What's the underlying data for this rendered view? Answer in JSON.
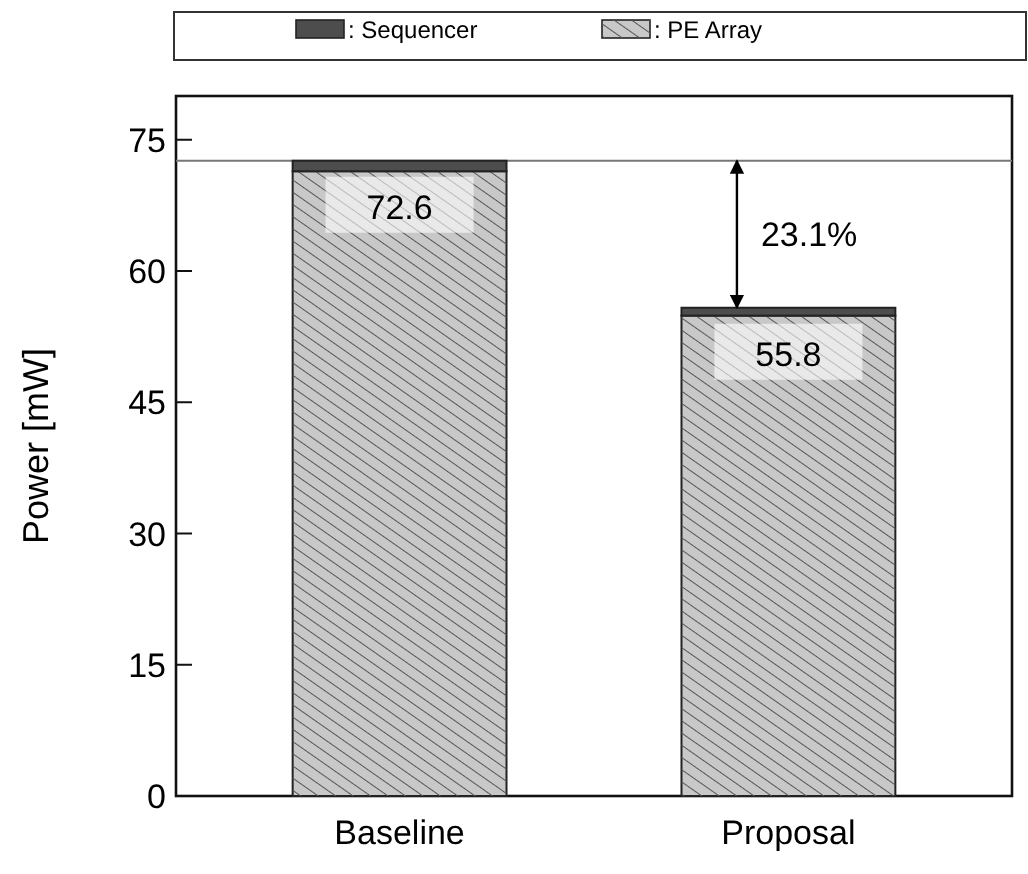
{
  "chart_data": {
    "type": "bar",
    "stacked": true,
    "ylabel": "Power [mW]",
    "categories": [
      "Baseline",
      "Proposal"
    ],
    "series": [
      {
        "name": ": PE Array",
        "color": "#c8c8c8",
        "values": [
          71.4,
          54.9
        ]
      },
      {
        "name": ": Sequencer",
        "color": "#4d4d4d",
        "values": [
          1.2,
          0.9
        ]
      }
    ],
    "totals": [
      "72.6",
      "55.8"
    ],
    "ylim": [
      0,
      80
    ],
    "yticks": [
      0,
      15,
      30,
      45,
      60,
      75
    ],
    "grid": false,
    "legend": "top",
    "ref_lines": [
      {
        "axis": "y",
        "value": 72.6,
        "color": "#777777"
      }
    ],
    "annotations": [
      "23.1%"
    ]
  }
}
